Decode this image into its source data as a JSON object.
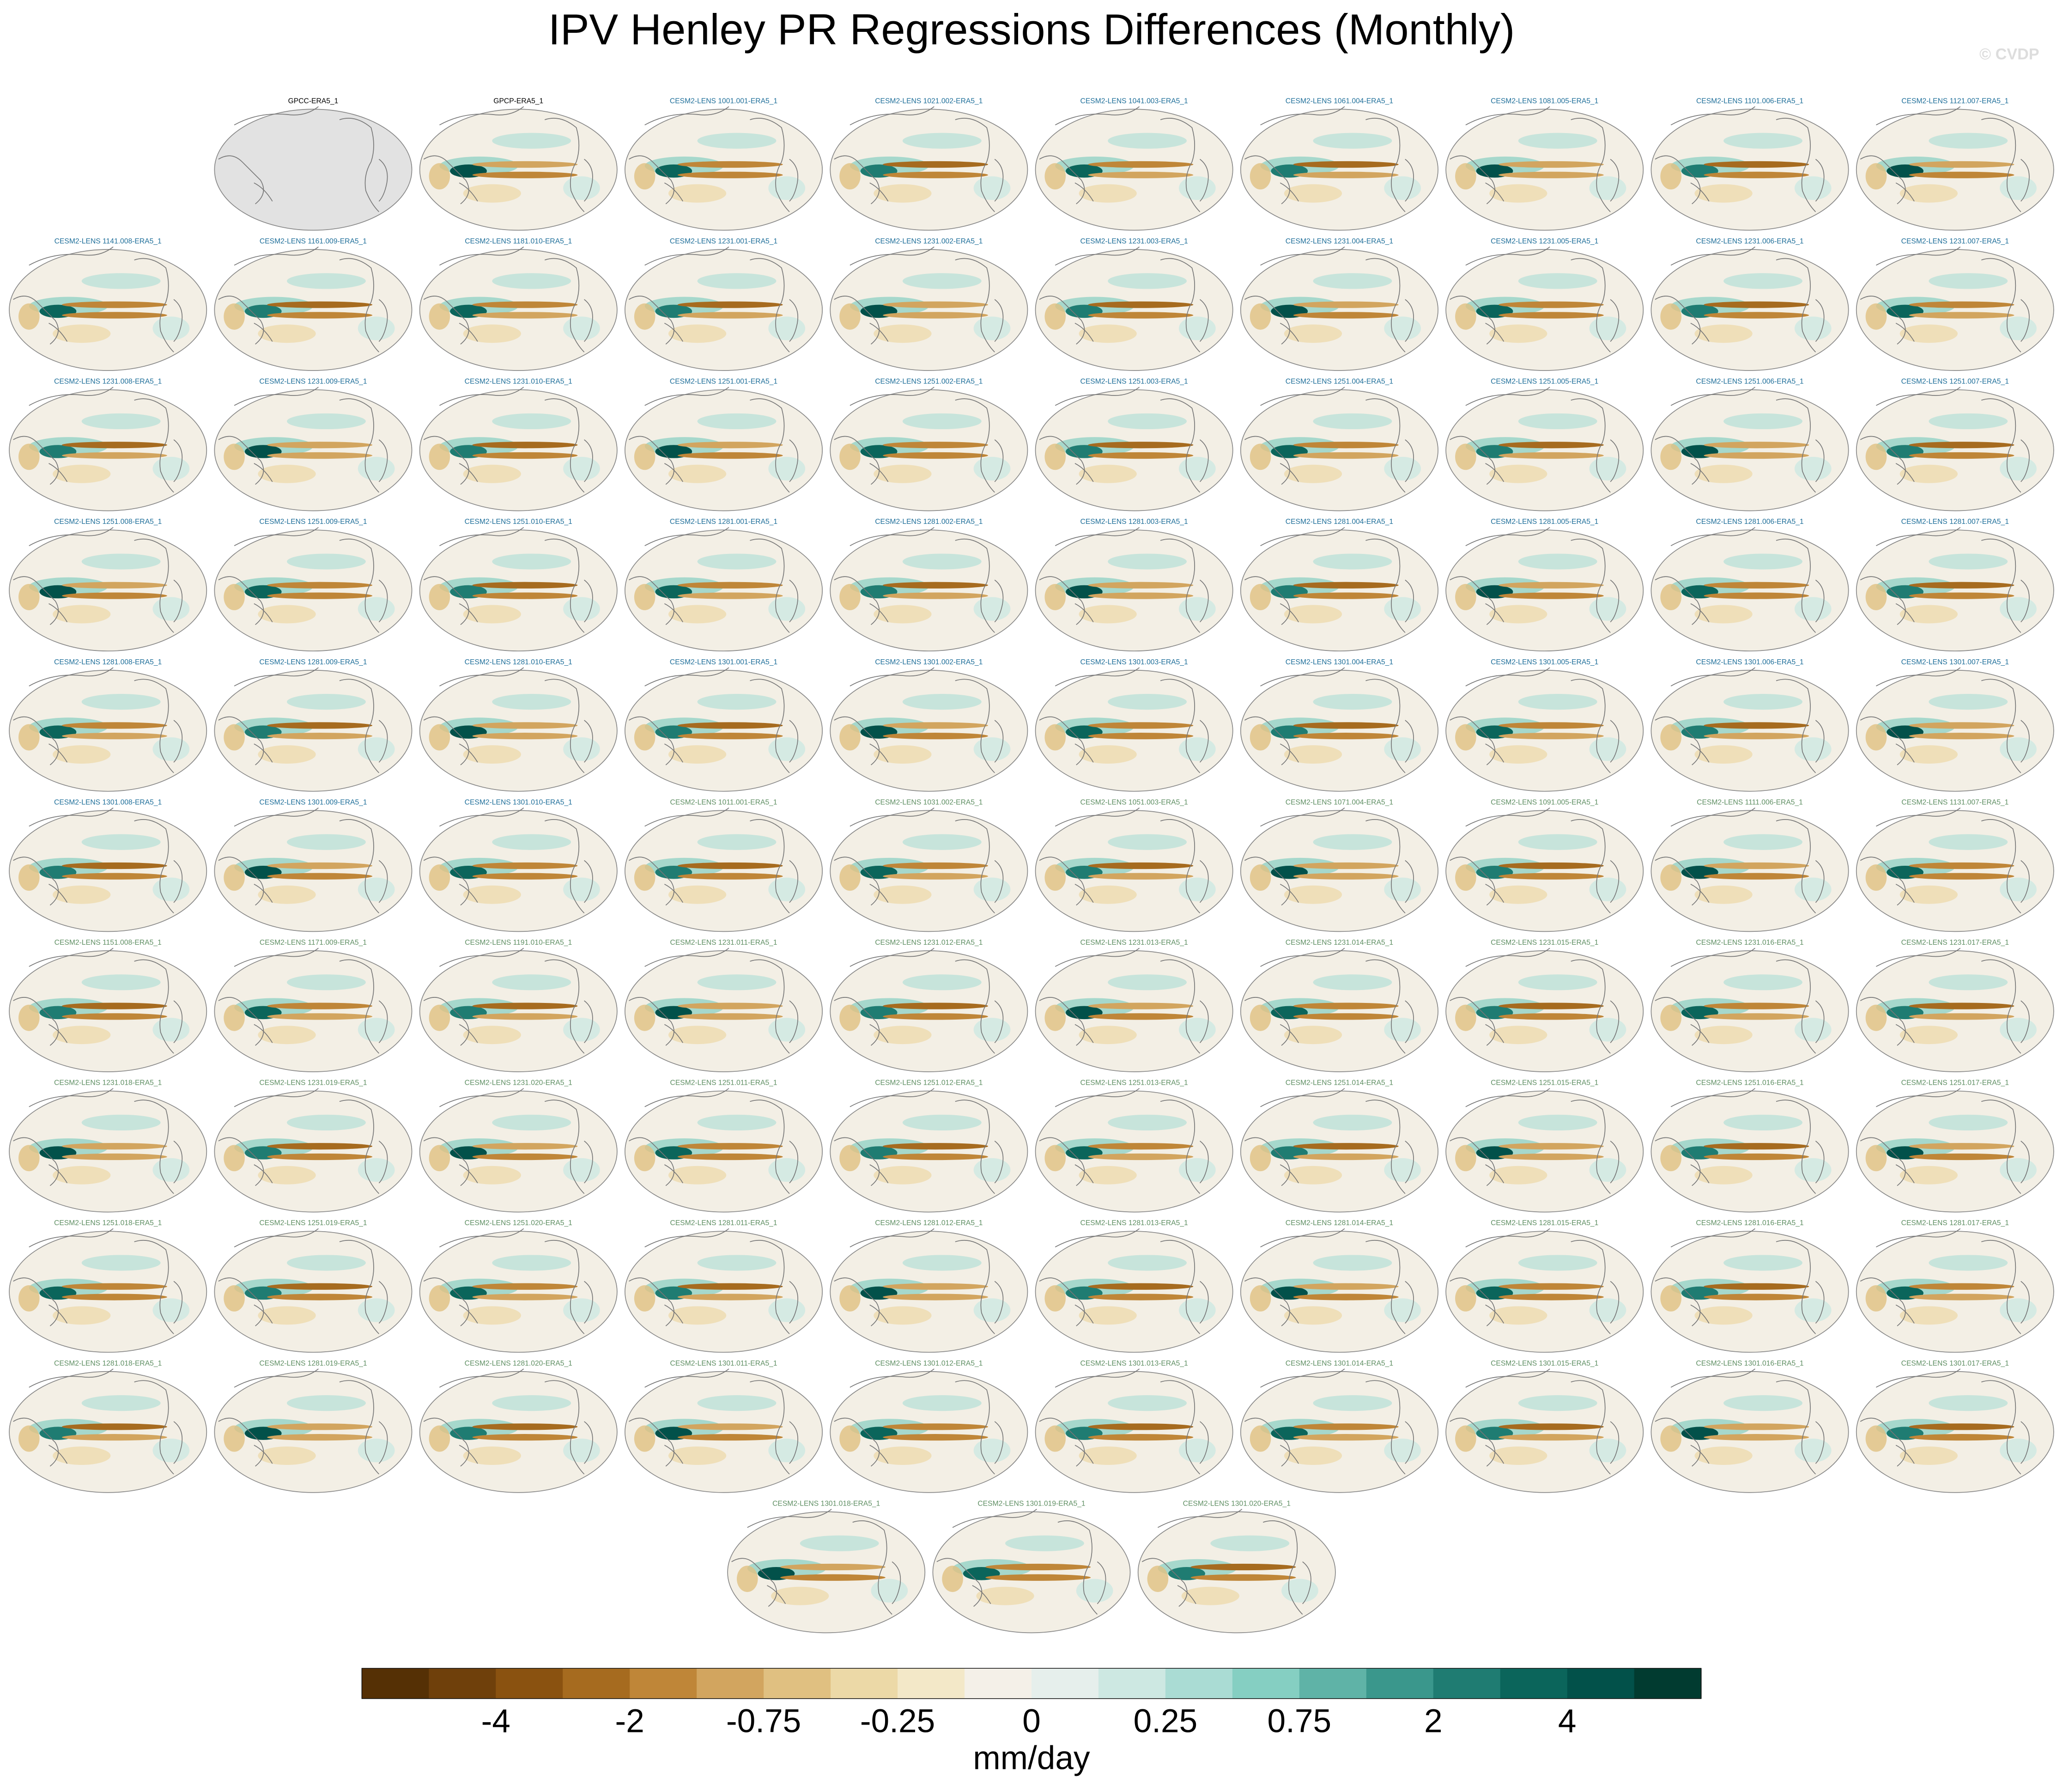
{
  "title": "IPV Henley PR Regressions Differences (Monthly)",
  "watermark": "© CVDP",
  "panel_groups": [
    {
      "color": "#000000",
      "labels": [
        "GPCC-ERA5_1",
        "GPCP-ERA5_1"
      ]
    },
    {
      "color": "#1f6f9a",
      "labels": [
        "CESM2-LENS 1001.001-ERA5_1",
        "CESM2-LENS 1021.002-ERA5_1",
        "CESM2-LENS 1041.003-ERA5_1",
        "CESM2-LENS 1061.004-ERA5_1",
        "CESM2-LENS 1081.005-ERA5_1",
        "CESM2-LENS 1101.006-ERA5_1",
        "CESM2-LENS 1121.007-ERA5_1",
        "CESM2-LENS 1141.008-ERA5_1",
        "CESM2-LENS 1161.009-ERA5_1",
        "CESM2-LENS 1181.010-ERA5_1",
        "CESM2-LENS 1231.001-ERA5_1",
        "CESM2-LENS 1231.002-ERA5_1",
        "CESM2-LENS 1231.003-ERA5_1",
        "CESM2-LENS 1231.004-ERA5_1",
        "CESM2-LENS 1231.005-ERA5_1",
        "CESM2-LENS 1231.006-ERA5_1",
        "CESM2-LENS 1231.007-ERA5_1",
        "CESM2-LENS 1231.008-ERA5_1",
        "CESM2-LENS 1231.009-ERA5_1",
        "CESM2-LENS 1231.010-ERA5_1",
        "CESM2-LENS 1251.001-ERA5_1",
        "CESM2-LENS 1251.002-ERA5_1",
        "CESM2-LENS 1251.003-ERA5_1",
        "CESM2-LENS 1251.004-ERA5_1",
        "CESM2-LENS 1251.005-ERA5_1",
        "CESM2-LENS 1251.006-ERA5_1",
        "CESM2-LENS 1251.007-ERA5_1",
        "CESM2-LENS 1251.008-ERA5_1",
        "CESM2-LENS 1251.009-ERA5_1",
        "CESM2-LENS 1251.010-ERA5_1",
        "CESM2-LENS 1281.001-ERA5_1",
        "CESM2-LENS 1281.002-ERA5_1",
        "CESM2-LENS 1281.003-ERA5_1",
        "CESM2-LENS 1281.004-ERA5_1",
        "CESM2-LENS 1281.005-ERA5_1",
        "CESM2-LENS 1281.006-ERA5_1",
        "CESM2-LENS 1281.007-ERA5_1",
        "CESM2-LENS 1281.008-ERA5_1",
        "CESM2-LENS 1281.009-ERA5_1",
        "CESM2-LENS 1281.010-ERA5_1",
        "CESM2-LENS 1301.001-ERA5_1",
        "CESM2-LENS 1301.002-ERA5_1",
        "CESM2-LENS 1301.003-ERA5_1",
        "CESM2-LENS 1301.004-ERA5_1",
        "CESM2-LENS 1301.005-ERA5_1",
        "CESM2-LENS 1301.006-ERA5_1",
        "CESM2-LENS 1301.007-ERA5_1",
        "CESM2-LENS 1301.008-ERA5_1",
        "CESM2-LENS 1301.009-ERA5_1",
        "CESM2-LENS 1301.010-ERA5_1"
      ]
    },
    {
      "color": "#5f8f63",
      "labels": [
        "CESM2-LENS 1011.001-ERA5_1",
        "CESM2-LENS 1031.002-ERA5_1",
        "CESM2-LENS 1051.003-ERA5_1",
        "CESM2-LENS 1071.004-ERA5_1",
        "CESM2-LENS 1091.005-ERA5_1",
        "CESM2-LENS 1111.006-ERA5_1",
        "CESM2-LENS 1131.007-ERA5_1",
        "CESM2-LENS 1151.008-ERA5_1",
        "CESM2-LENS 1171.009-ERA5_1",
        "CESM2-LENS 1191.010-ERA5_1",
        "CESM2-LENS 1231.011-ERA5_1",
        "CESM2-LENS 1231.012-ERA5_1",
        "CESM2-LENS 1231.013-ERA5_1",
        "CESM2-LENS 1231.014-ERA5_1",
        "CESM2-LENS 1231.015-ERA5_1",
        "CESM2-LENS 1231.016-ERA5_1",
        "CESM2-LENS 1231.017-ERA5_1",
        "CESM2-LENS 1231.018-ERA5_1",
        "CESM2-LENS 1231.019-ERA5_1",
        "CESM2-LENS 1231.020-ERA5_1",
        "CESM2-LENS 1251.011-ERA5_1",
        "CESM2-LENS 1251.012-ERA5_1",
        "CESM2-LENS 1251.013-ERA5_1",
        "CESM2-LENS 1251.014-ERA5_1",
        "CESM2-LENS 1251.015-ERA5_1",
        "CESM2-LENS 1251.016-ERA5_1",
        "CESM2-LENS 1251.017-ERA5_1",
        "CESM2-LENS 1251.018-ERA5_1",
        "CESM2-LENS 1251.019-ERA5_1",
        "CESM2-LENS 1251.020-ERA5_1",
        "CESM2-LENS 1281.011-ERA5_1",
        "CESM2-LENS 1281.012-ERA5_1",
        "CESM2-LENS 1281.013-ERA5_1",
        "CESM2-LENS 1281.014-ERA5_1",
        "CESM2-LENS 1281.015-ERA5_1",
        "CESM2-LENS 1281.016-ERA5_1",
        "CESM2-LENS 1281.017-ERA5_1",
        "CESM2-LENS 1281.018-ERA5_1",
        "CESM2-LENS 1281.019-ERA5_1",
        "CESM2-LENS 1281.020-ERA5_1",
        "CESM2-LENS 1301.011-ERA5_1",
        "CESM2-LENS 1301.012-ERA5_1",
        "CESM2-LENS 1301.013-ERA5_1",
        "CESM2-LENS 1301.014-ERA5_1",
        "CESM2-LENS 1301.015-ERA5_1",
        "CESM2-LENS 1301.016-ERA5_1",
        "CESM2-LENS 1301.017-ERA5_1",
        "CESM2-LENS 1301.018-ERA5_1",
        "CESM2-LENS 1301.019-ERA5_1",
        "CESM2-LENS 1301.020-ERA5_1"
      ]
    }
  ],
  "colorbar": {
    "colors": [
      "#553005",
      "#6f400b",
      "#8a5210",
      "#a66b1f",
      "#bf8638",
      "#d2a55f",
      "#e0c081",
      "#ecd9a7",
      "#f3e8c8",
      "#f4f0e8",
      "#e6efec",
      "#cde8e2",
      "#aadcd4",
      "#85cfc2",
      "#5fb3a7",
      "#3a978c",
      "#1f7c72",
      "#0b655b",
      "#02514a",
      "#013b30"
    ],
    "ticks": [
      -4,
      -2,
      -0.75,
      -0.25,
      0,
      0.25,
      0.75,
      2,
      4
    ],
    "label": "mm/day"
  }
}
